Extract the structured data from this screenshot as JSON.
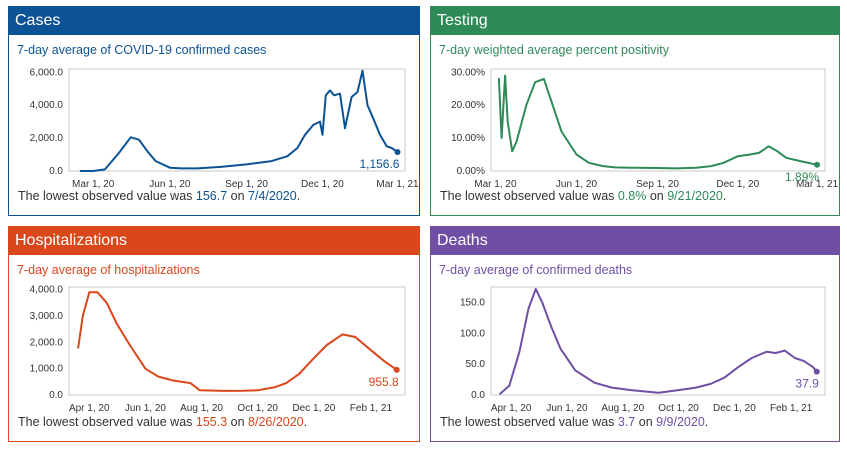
{
  "panels": [
    {
      "title": "Cases",
      "subtitle": "7-day average of COVID-19 confirmed cases",
      "color": "#0b5394",
      "footer": {
        "prefix": "The lowest observed value was ",
        "value": "156.7",
        "mid": " on ",
        "date": "7/4/2020",
        "suffix": "."
      }
    },
    {
      "title": "Testing",
      "subtitle": "7-day weighted average percent positivity",
      "color": "#2e8b57",
      "footer": {
        "prefix": "The lowest observed value was ",
        "value": "0.8%",
        "mid": " on ",
        "date": "9/21/2020",
        "suffix": "."
      }
    },
    {
      "title": "Hospitalizations",
      "subtitle": "7-day average of hospitalizations",
      "color": "#d9471b",
      "footer": {
        "prefix": "The lowest observed value was ",
        "value": "155.3",
        "mid": " on ",
        "date": "8/26/2020",
        "suffix": "."
      }
    },
    {
      "title": "Deaths",
      "subtitle": "7-day average of confirmed deaths",
      "color": "#6f4fa3",
      "footer": {
        "prefix": "The lowest observed value was ",
        "value": "3.7",
        "mid": " on ",
        "date": "9/9/2020",
        "suffix": "."
      }
    }
  ],
  "chart_data": [
    {
      "type": "line",
      "title": "7-day average of COVID-19 confirmed cases",
      "y_ticks": [
        "0.0",
        "2,000.0",
        "4,000.0",
        "6,000.0"
      ],
      "ylim": [
        0,
        6200
      ],
      "x_ticks": [
        "Mar 1, 20",
        "Jun 1, 20",
        "Sep 1, 20",
        "Dec 1, 20",
        "Mar 1, 21"
      ],
      "x": [
        "2020-02-15",
        "2020-03-01",
        "2020-03-15",
        "2020-04-01",
        "2020-04-15",
        "2020-04-25",
        "2020-05-05",
        "2020-05-15",
        "2020-06-01",
        "2020-06-15",
        "2020-07-04",
        "2020-08-01",
        "2020-09-01",
        "2020-10-01",
        "2020-10-20",
        "2020-11-01",
        "2020-11-10",
        "2020-11-20",
        "2020-11-28",
        "2020-12-01",
        "2020-12-05",
        "2020-12-10",
        "2020-12-15",
        "2020-12-22",
        "2020-12-28",
        "2021-01-05",
        "2021-01-12",
        "2021-01-18",
        "2021-01-24",
        "2021-01-30",
        "2021-02-08",
        "2021-02-16",
        "2021-02-22",
        "2021-03-01"
      ],
      "values": [
        0,
        0,
        100,
        1100,
        2050,
        1900,
        1200,
        600,
        200,
        160,
        157,
        250,
        400,
        600,
        900,
        1400,
        2200,
        2800,
        3000,
        2200,
        4600,
        4900,
        4600,
        4700,
        2600,
        4500,
        4800,
        6100,
        4000,
        3300,
        2200,
        1500,
        1400,
        1156.6
      ],
      "end_label": "1,156.6",
      "grid": false
    },
    {
      "type": "line",
      "title": "7-day weighted average percent positivity",
      "y_ticks": [
        "0.00%",
        "10.00%",
        "20.00%",
        "30.00%"
      ],
      "ylim": [
        0,
        31
      ],
      "x_ticks": [
        "Mar 1, 20",
        "Jun 1, 20",
        "Sep 1, 20",
        "Dec 1, 20",
        "Mar 1, 21"
      ],
      "x": [
        "2020-03-05",
        "2020-03-08",
        "2020-03-12",
        "2020-03-15",
        "2020-03-20",
        "2020-03-25",
        "2020-04-05",
        "2020-04-15",
        "2020-04-25",
        "2020-05-05",
        "2020-05-15",
        "2020-06-01",
        "2020-06-15",
        "2020-07-01",
        "2020-07-15",
        "2020-08-01",
        "2020-09-01",
        "2020-09-21",
        "2020-10-15",
        "2020-11-01",
        "2020-11-15",
        "2020-12-01",
        "2020-12-15",
        "2020-12-25",
        "2021-01-05",
        "2021-01-15",
        "2021-01-25",
        "2021-02-10",
        "2021-03-01"
      ],
      "values": [
        28,
        10,
        29,
        15,
        6,
        9,
        20,
        27,
        28,
        20,
        12,
        5,
        2.5,
        1.5,
        1.1,
        1.0,
        0.9,
        0.8,
        1.0,
        1.5,
        2.5,
        4.5,
        5,
        5.5,
        7.5,
        6,
        4,
        3,
        1.89
      ],
      "end_label": "1.89%",
      "grid": false
    },
    {
      "type": "line",
      "title": "7-day average of hospitalizations",
      "y_ticks": [
        "0.0",
        "1,000.0",
        "2,000.0",
        "3,000.0",
        "4,000.0"
      ],
      "ylim": [
        0,
        4100
      ],
      "x_ticks": [
        "Apr 1, 20",
        "Jun 1, 20",
        "Aug 1, 20",
        "Oct 1, 20",
        "Dec 1, 20",
        "Feb 1, 21"
      ],
      "x": [
        "2020-03-20",
        "2020-03-25",
        "2020-04-01",
        "2020-04-10",
        "2020-04-20",
        "2020-05-01",
        "2020-05-15",
        "2020-06-01",
        "2020-06-15",
        "2020-07-01",
        "2020-07-20",
        "2020-07-30",
        "2020-08-26",
        "2020-09-15",
        "2020-10-01",
        "2020-10-20",
        "2020-11-01",
        "2020-11-15",
        "2020-12-01",
        "2020-12-15",
        "2021-01-01",
        "2021-01-15",
        "2021-02-01",
        "2021-02-15",
        "2021-03-01"
      ],
      "values": [
        1800,
        3000,
        3900,
        3900,
        3500,
        2700,
        1900,
        1000,
        700,
        550,
        450,
        180,
        155.3,
        160,
        180,
        300,
        450,
        800,
        1400,
        1900,
        2300,
        2200,
        1700,
        1300,
        955.8
      ],
      "end_label": "955.8",
      "grid": false
    },
    {
      "type": "line",
      "title": "7-day average of confirmed deaths",
      "y_ticks": [
        "0.0",
        "50.0",
        "100.0",
        "150.0"
      ],
      "ylim": [
        0,
        175
      ],
      "x_ticks": [
        "Apr 1, 20",
        "Jun 1, 20",
        "Aug 1, 20",
        "Oct 1, 20",
        "Dec 1, 20",
        "Feb 1, 21"
      ],
      "x": [
        "2020-03-20",
        "2020-03-30",
        "2020-04-10",
        "2020-04-20",
        "2020-04-28",
        "2020-05-05",
        "2020-05-15",
        "2020-05-25",
        "2020-06-10",
        "2020-07-01",
        "2020-07-20",
        "2020-08-10",
        "2020-09-09",
        "2020-10-01",
        "2020-10-20",
        "2020-11-05",
        "2020-11-20",
        "2020-12-05",
        "2020-12-20",
        "2021-01-05",
        "2021-01-15",
        "2021-01-25",
        "2021-02-05",
        "2021-02-15",
        "2021-02-25",
        "2021-03-01"
      ],
      "values": [
        2,
        15,
        70,
        140,
        172,
        150,
        110,
        75,
        40,
        20,
        12,
        8,
        3.7,
        8,
        12,
        18,
        28,
        45,
        60,
        70,
        68,
        72,
        60,
        55,
        45,
        37.9
      ],
      "end_label": "37.9",
      "grid": false
    }
  ]
}
